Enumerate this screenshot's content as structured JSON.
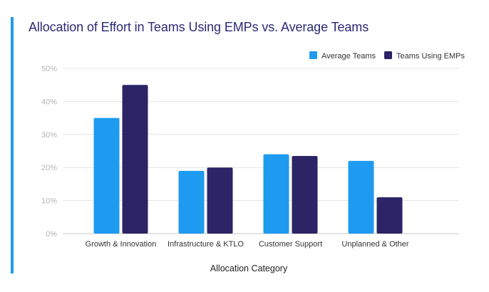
{
  "chart_data": {
    "type": "bar",
    "title": "Allocation of Effort in Teams Using EMPs vs. Average Teams",
    "xlabel": "Allocation Category",
    "ylabel": "",
    "categories": [
      "Growth & Innovation",
      "Infrastructure & KTLO",
      "Customer Support",
      "Unplanned & Other"
    ],
    "series": [
      {
        "name": "Average Teams",
        "values": [
          35,
          19,
          24,
          22
        ],
        "color": "#1e9bf0"
      },
      {
        "name": "Teams Using EMPs",
        "values": [
          45,
          20,
          23.5,
          11
        ],
        "color": "#2b2466"
      }
    ],
    "ylim": [
      0,
      50
    ],
    "yticks": [
      0,
      10,
      20,
      30,
      40,
      50
    ],
    "ytick_format": "{v}%",
    "grid": true,
    "legend_position": "top-right"
  },
  "colors": {
    "accent": "#1e9bf0",
    "title": "#2b2a78",
    "grid": "#e4e4e4"
  }
}
